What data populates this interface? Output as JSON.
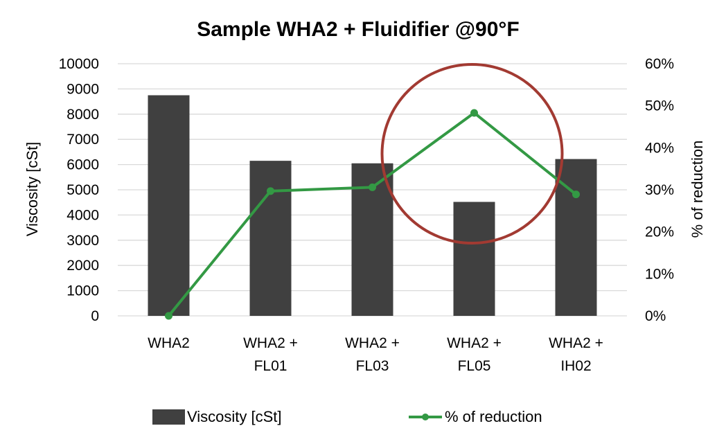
{
  "chart_data": {
    "type": "bar",
    "title": "Sample WHA2 + Fluidifier @90°F",
    "categories": [
      [
        "WHA2"
      ],
      [
        "WHA2 +",
        "FL01"
      ],
      [
        "WHA2 +",
        "FL03"
      ],
      [
        "WHA2 +",
        "FL05"
      ],
      [
        "WHA2 +",
        "IH02"
      ]
    ],
    "series": [
      {
        "name": "Viscosity [cSt]",
        "type": "bar",
        "axis": "left",
        "values": [
          8750,
          6150,
          6050,
          4520,
          6220
        ],
        "color": "#404040"
      },
      {
        "name": "% of reduction",
        "type": "line",
        "axis": "right",
        "values": [
          0,
          29.7,
          30.6,
          48.3,
          28.9
        ],
        "color": "#339944"
      }
    ],
    "ylabel": "Viscosity [cSt]",
    "y2label": "% of reduction",
    "ylim": [
      0,
      10000
    ],
    "y2lim": [
      0,
      60
    ],
    "yticks": [
      "0",
      "1000",
      "2000",
      "3000",
      "4000",
      "5000",
      "6000",
      "7000",
      "8000",
      "9000",
      "10000"
    ],
    "y2ticks": [
      "0%",
      "10%",
      "20%",
      "30%",
      "40%",
      "50%",
      "60%"
    ],
    "grid": true,
    "legend_position": "bottom",
    "annotation": {
      "shape": "circle",
      "target_category_index": 3,
      "color": "#A23A32"
    }
  }
}
